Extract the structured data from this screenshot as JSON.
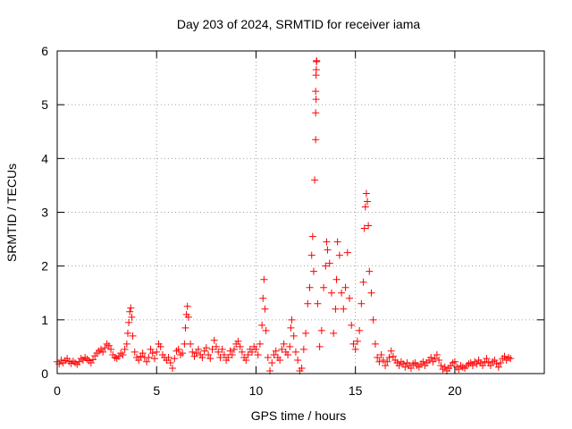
{
  "chart_data": {
    "type": "scatter",
    "title": "Day 203 of 2024, SRMTID for receiver iama",
    "xlabel": "GPS time / hours",
    "ylabel": "SRMTID / TECUs",
    "xlim": [
      0,
      24.5
    ],
    "ylim": [
      0,
      6
    ],
    "xticks": [
      0,
      5,
      10,
      15,
      20
    ],
    "yticks": [
      0,
      1,
      2,
      3,
      4,
      5,
      6
    ],
    "xtick_labels": [
      "0",
      "5",
      "10",
      "15",
      "20"
    ],
    "ytick_labels": [
      "0",
      "1",
      "2",
      "3",
      "4",
      "5",
      "6"
    ],
    "grid": true,
    "marker": "+",
    "color": "#ff0000",
    "series": [
      {
        "name": "SRMTID",
        "points": [
          [
            0.0,
            0.22
          ],
          [
            0.1,
            0.18
          ],
          [
            0.2,
            0.25
          ],
          [
            0.3,
            0.2
          ],
          [
            0.4,
            0.24
          ],
          [
            0.5,
            0.28
          ],
          [
            0.6,
            0.22
          ],
          [
            0.7,
            0.19
          ],
          [
            0.8,
            0.23
          ],
          [
            0.9,
            0.2
          ],
          [
            1.0,
            0.17
          ],
          [
            1.1,
            0.22
          ],
          [
            1.2,
            0.28
          ],
          [
            1.3,
            0.25
          ],
          [
            1.4,
            0.3
          ],
          [
            1.5,
            0.27
          ],
          [
            1.6,
            0.24
          ],
          [
            1.7,
            0.2
          ],
          [
            1.8,
            0.26
          ],
          [
            1.9,
            0.33
          ],
          [
            2.0,
            0.38
          ],
          [
            2.1,
            0.42
          ],
          [
            2.2,
            0.45
          ],
          [
            2.3,
            0.4
          ],
          [
            2.4,
            0.48
          ],
          [
            2.5,
            0.55
          ],
          [
            2.6,
            0.52
          ],
          [
            2.7,
            0.45
          ],
          [
            2.8,
            0.35
          ],
          [
            2.9,
            0.3
          ],
          [
            3.0,
            0.28
          ],
          [
            3.1,
            0.32
          ],
          [
            3.2,
            0.38
          ],
          [
            3.3,
            0.35
          ],
          [
            3.4,
            0.45
          ],
          [
            3.5,
            0.55
          ],
          [
            3.55,
            0.75
          ],
          [
            3.6,
            0.95
          ],
          [
            3.65,
            1.15
          ],
          [
            3.7,
            1.22
          ],
          [
            3.75,
            1.05
          ],
          [
            3.8,
            0.7
          ],
          [
            3.9,
            0.4
          ],
          [
            4.0,
            0.3
          ],
          [
            4.1,
            0.25
          ],
          [
            4.2,
            0.32
          ],
          [
            4.3,
            0.38
          ],
          [
            4.4,
            0.3
          ],
          [
            4.5,
            0.22
          ],
          [
            4.6,
            0.3
          ],
          [
            4.7,
            0.45
          ],
          [
            4.8,
            0.38
          ],
          [
            4.9,
            0.28
          ],
          [
            5.0,
            0.4
          ],
          [
            5.1,
            0.55
          ],
          [
            5.2,
            0.5
          ],
          [
            5.3,
            0.35
          ],
          [
            5.4,
            0.3
          ],
          [
            5.5,
            0.25
          ],
          [
            5.6,
            0.3
          ],
          [
            5.7,
            0.2
          ],
          [
            5.8,
            0.1
          ],
          [
            5.9,
            0.28
          ],
          [
            6.0,
            0.42
          ],
          [
            6.1,
            0.45
          ],
          [
            6.2,
            0.35
          ],
          [
            6.3,
            0.38
          ],
          [
            6.4,
            0.55
          ],
          [
            6.45,
            0.85
          ],
          [
            6.5,
            1.1
          ],
          [
            6.55,
            1.25
          ],
          [
            6.6,
            1.05
          ],
          [
            6.7,
            0.55
          ],
          [
            6.8,
            0.4
          ],
          [
            6.9,
            0.32
          ],
          [
            7.0,
            0.38
          ],
          [
            7.1,
            0.45
          ],
          [
            7.2,
            0.35
          ],
          [
            7.3,
            0.3
          ],
          [
            7.4,
            0.42
          ],
          [
            7.5,
            0.48
          ],
          [
            7.6,
            0.35
          ],
          [
            7.7,
            0.28
          ],
          [
            7.8,
            0.45
          ],
          [
            7.9,
            0.62
          ],
          [
            8.0,
            0.5
          ],
          [
            8.1,
            0.4
          ],
          [
            8.2,
            0.3
          ],
          [
            8.3,
            0.45
          ],
          [
            8.4,
            0.35
          ],
          [
            8.5,
            0.25
          ],
          [
            8.6,
            0.3
          ],
          [
            8.7,
            0.42
          ],
          [
            8.8,
            0.35
          ],
          [
            8.9,
            0.45
          ],
          [
            9.0,
            0.55
          ],
          [
            9.1,
            0.6
          ],
          [
            9.2,
            0.5
          ],
          [
            9.3,
            0.4
          ],
          [
            9.4,
            0.3
          ],
          [
            9.5,
            0.25
          ],
          [
            9.6,
            0.35
          ],
          [
            9.7,
            0.45
          ],
          [
            9.8,
            0.4
          ],
          [
            9.9,
            0.5
          ],
          [
            10.0,
            0.45
          ],
          [
            10.1,
            0.35
          ],
          [
            10.2,
            0.55
          ],
          [
            10.3,
            0.9
          ],
          [
            10.35,
            1.4
          ],
          [
            10.4,
            1.75
          ],
          [
            10.45,
            1.2
          ],
          [
            10.5,
            0.8
          ],
          [
            10.6,
            0.3
          ],
          [
            10.7,
            0.05
          ],
          [
            10.8,
            0.2
          ],
          [
            10.9,
            0.35
          ],
          [
            11.0,
            0.42
          ],
          [
            11.1,
            0.3
          ],
          [
            11.2,
            0.25
          ],
          [
            11.3,
            0.45
          ],
          [
            11.4,
            0.55
          ],
          [
            11.5,
            0.4
          ],
          [
            11.6,
            0.35
          ],
          [
            11.7,
            0.5
          ],
          [
            11.75,
            0.85
          ],
          [
            11.8,
            1.0
          ],
          [
            11.9,
            0.7
          ],
          [
            12.0,
            0.4
          ],
          [
            12.1,
            0.25
          ],
          [
            12.2,
            0.05
          ],
          [
            12.3,
            0.1
          ],
          [
            12.4,
            0.45
          ],
          [
            12.5,
            0.75
          ],
          [
            12.6,
            1.3
          ],
          [
            12.7,
            1.6
          ],
          [
            12.8,
            2.2
          ],
          [
            12.85,
            2.55
          ],
          [
            12.9,
            1.9
          ],
          [
            12.95,
            3.6
          ],
          [
            13.0,
            4.35
          ],
          [
            13.0,
            4.85
          ],
          [
            13.02,
            5.1
          ],
          [
            13.0,
            5.25
          ],
          [
            13.02,
            5.55
          ],
          [
            13.03,
            5.65
          ],
          [
            13.04,
            5.8
          ],
          [
            13.05,
            5.82
          ],
          [
            13.1,
            1.3
          ],
          [
            13.2,
            0.5
          ],
          [
            13.3,
            0.8
          ],
          [
            13.4,
            1.6
          ],
          [
            13.5,
            2.0
          ],
          [
            13.55,
            2.45
          ],
          [
            13.6,
            2.3
          ],
          [
            13.7,
            2.05
          ],
          [
            13.8,
            1.5
          ],
          [
            13.9,
            0.75
          ],
          [
            14.0,
            1.2
          ],
          [
            14.05,
            1.75
          ],
          [
            14.1,
            2.45
          ],
          [
            14.2,
            2.2
          ],
          [
            14.3,
            1.5
          ],
          [
            14.4,
            1.2
          ],
          [
            14.5,
            1.6
          ],
          [
            14.6,
            2.25
          ],
          [
            14.7,
            1.4
          ],
          [
            14.8,
            0.9
          ],
          [
            14.9,
            0.55
          ],
          [
            15.0,
            0.45
          ],
          [
            15.1,
            0.6
          ],
          [
            15.2,
            0.8
          ],
          [
            15.3,
            1.3
          ],
          [
            15.4,
            1.7
          ],
          [
            15.45,
            2.7
          ],
          [
            15.5,
            3.1
          ],
          [
            15.55,
            3.35
          ],
          [
            15.6,
            3.2
          ],
          [
            15.65,
            2.75
          ],
          [
            15.7,
            1.9
          ],
          [
            15.8,
            1.5
          ],
          [
            15.9,
            1.0
          ],
          [
            16.0,
            0.55
          ],
          [
            16.1,
            0.3
          ],
          [
            16.2,
            0.22
          ],
          [
            16.3,
            0.35
          ],
          [
            16.4,
            0.25
          ],
          [
            16.5,
            0.15
          ],
          [
            16.6,
            0.22
          ],
          [
            16.7,
            0.3
          ],
          [
            16.8,
            0.42
          ],
          [
            16.9,
            0.32
          ],
          [
            17.0,
            0.25
          ],
          [
            17.1,
            0.2
          ],
          [
            17.2,
            0.15
          ],
          [
            17.3,
            0.22
          ],
          [
            17.4,
            0.18
          ],
          [
            17.5,
            0.12
          ],
          [
            17.6,
            0.2
          ],
          [
            17.7,
            0.15
          ],
          [
            17.8,
            0.1
          ],
          [
            17.9,
            0.18
          ],
          [
            18.0,
            0.2
          ],
          [
            18.1,
            0.15
          ],
          [
            18.2,
            0.12
          ],
          [
            18.3,
            0.18
          ],
          [
            18.4,
            0.22
          ],
          [
            18.5,
            0.15
          ],
          [
            18.6,
            0.2
          ],
          [
            18.7,
            0.25
          ],
          [
            18.8,
            0.3
          ],
          [
            18.9,
            0.22
          ],
          [
            19.0,
            0.28
          ],
          [
            19.1,
            0.35
          ],
          [
            19.2,
            0.25
          ],
          [
            19.3,
            0.15
          ],
          [
            19.4,
            0.08
          ],
          [
            19.5,
            0.12
          ],
          [
            19.6,
            0.05
          ],
          [
            19.7,
            0.1
          ],
          [
            19.8,
            0.15
          ],
          [
            19.9,
            0.2
          ],
          [
            20.0,
            0.22
          ],
          [
            20.1,
            0.12
          ],
          [
            20.2,
            0.08
          ],
          [
            20.3,
            0.15
          ],
          [
            20.4,
            0.12
          ],
          [
            20.5,
            0.1
          ],
          [
            20.6,
            0.15
          ],
          [
            20.7,
            0.18
          ],
          [
            20.8,
            0.2
          ],
          [
            20.9,
            0.15
          ],
          [
            21.0,
            0.22
          ],
          [
            21.1,
            0.18
          ],
          [
            21.2,
            0.25
          ],
          [
            21.3,
            0.2
          ],
          [
            21.4,
            0.15
          ],
          [
            21.5,
            0.22
          ],
          [
            21.6,
            0.28
          ],
          [
            21.7,
            0.2
          ],
          [
            21.8,
            0.15
          ],
          [
            21.9,
            0.22
          ],
          [
            22.0,
            0.25
          ],
          [
            22.1,
            0.18
          ],
          [
            22.2,
            0.12
          ],
          [
            22.3,
            0.2
          ],
          [
            22.4,
            0.28
          ],
          [
            22.5,
            0.32
          ],
          [
            22.6,
            0.25
          ],
          [
            22.7,
            0.3
          ],
          [
            22.8,
            0.28
          ]
        ]
      }
    ]
  }
}
